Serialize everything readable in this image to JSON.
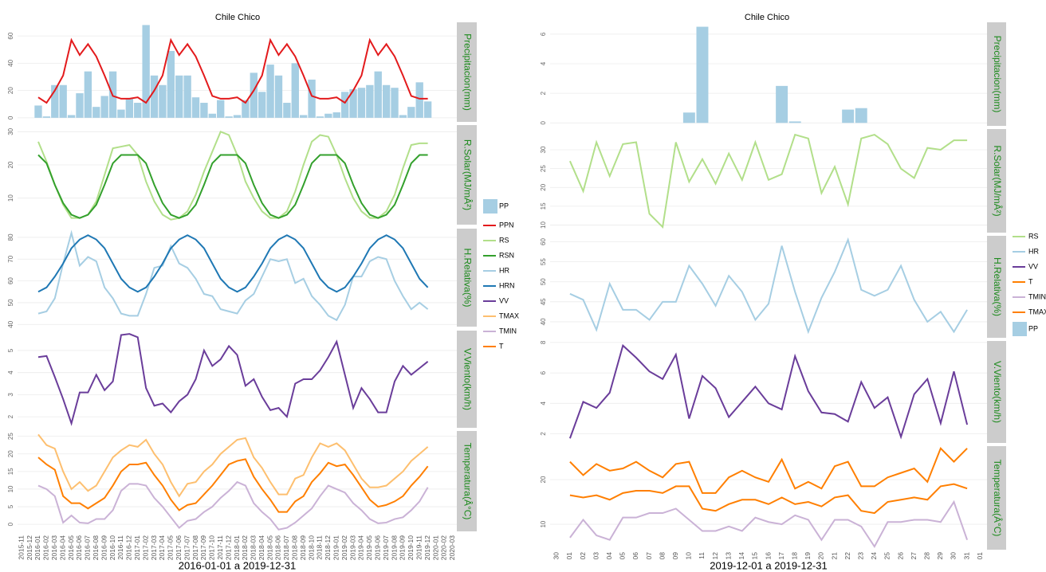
{
  "chart_data": [
    {
      "type": "faceted",
      "title": "Chile Chico",
      "xlabel": "2016-01-01 a 2019-12-31",
      "grid": true,
      "categories": [
        "2015-11",
        "2015-12",
        "2016-01",
        "2016-02",
        "2016-03",
        "2016-04",
        "2016-05",
        "2016-06",
        "2016-07",
        "2016-08",
        "2016-09",
        "2016-10",
        "2016-11",
        "2016-12",
        "2017-01",
        "2017-02",
        "2017-03",
        "2017-04",
        "2017-05",
        "2017-06",
        "2017-07",
        "2017-08",
        "2017-09",
        "2017-10",
        "2017-11",
        "2017-12",
        "2018-01",
        "2018-02",
        "2018-03",
        "2018-04",
        "2018-05",
        "2018-06",
        "2018-07",
        "2018-08",
        "2018-09",
        "2018-10",
        "2018-11",
        "2018-12",
        "2019-01",
        "2019-02",
        "2019-03",
        "2019-04",
        "2019-05",
        "2019-06",
        "2019-07",
        "2019-08",
        "2019-09",
        "2019-10",
        "2019-11",
        "2019-12",
        "2020-01",
        "2020-02",
        "2020-03"
      ],
      "panels": [
        {
          "label": "Precipitacion(mm)",
          "ylim": [
            -3,
            70
          ],
          "yticks": [
            0,
            20,
            40,
            60
          ]
        },
        {
          "label": "R.Solar(MJ/mÂ²)",
          "ylim": [
            2,
            32
          ],
          "yticks": [
            10,
            20,
            30
          ]
        },
        {
          "label": "H.Relativa(%)",
          "ylim": [
            39,
            84
          ],
          "yticks": [
            40,
            50,
            60,
            70,
            80
          ]
        },
        {
          "label": "V.Viento(km/h)",
          "ylim": [
            1.5,
            5.9
          ],
          "yticks": [
            2,
            3,
            4,
            5
          ]
        },
        {
          "label": "Temperatura(Â°C)",
          "ylim": [
            -2,
            26.5
          ],
          "yticks": [
            0,
            5,
            10,
            15,
            20,
            25
          ]
        }
      ],
      "series": [
        {
          "name": "PP",
          "color": "#a6cee3",
          "kind": "bar",
          "panel": 0,
          "values": [
            null,
            null,
            9,
            1,
            24,
            24,
            2,
            18,
            34,
            8,
            16,
            34,
            6,
            14,
            11,
            68,
            31,
            24,
            49,
            31,
            31,
            15,
            11,
            3,
            13,
            1,
            2,
            13,
            33,
            19,
            39,
            31,
            11,
            40,
            2,
            28,
            1,
            3,
            4,
            19,
            21,
            22,
            24,
            34,
            24,
            22,
            2,
            8,
            26,
            12,
            null,
            null,
            null
          ]
        },
        {
          "name": "PPN",
          "color": "#e31a1c",
          "kind": "line",
          "panel": 0,
          "values": [
            null,
            null,
            15,
            11,
            20,
            31,
            57,
            46,
            54,
            45,
            31,
            16,
            14,
            14,
            15,
            11,
            20,
            31,
            57,
            46,
            54,
            45,
            31,
            16,
            14,
            14,
            15,
            11,
            20,
            31,
            57,
            46,
            54,
            45,
            31,
            16,
            14,
            14,
            15,
            11,
            20,
            31,
            57,
            46,
            54,
            45,
            31,
            16,
            14,
            14,
            null,
            null,
            null
          ]
        },
        {
          "name": "RS",
          "color": "#b2df8a",
          "kind": "line",
          "panel": 1,
          "values": [
            null,
            null,
            27,
            21,
            14,
            8,
            4,
            4,
            5,
            9,
            17,
            25,
            25.5,
            26,
            23,
            15,
            9,
            5,
            3.5,
            4,
            6,
            11,
            18,
            24,
            30,
            29,
            23,
            15,
            10,
            6,
            4,
            4,
            6,
            12,
            20,
            27,
            29,
            28.5,
            23,
            16,
            10,
            6,
            4,
            4,
            6,
            11,
            19,
            26,
            26.5,
            26.5,
            null,
            null,
            null
          ]
        },
        {
          "name": "RSN",
          "color": "#33a02c",
          "kind": "line",
          "panel": 1,
          "values": [
            null,
            null,
            23,
            20.5,
            14,
            8.5,
            5,
            4,
            5,
            8,
            14,
            20.5,
            23,
            23,
            23,
            20.5,
            14,
            8.5,
            5,
            4,
            5,
            8,
            14,
            20.5,
            23,
            23,
            23,
            20.5,
            14,
            8.5,
            5,
            4,
            5,
            8,
            14,
            20.5,
            23,
            23,
            23,
            20.5,
            14,
            8.5,
            5,
            4,
            5,
            8,
            14,
            20.5,
            23,
            23,
            null,
            null,
            null
          ]
        },
        {
          "name": "HR",
          "color": "#a6cee3",
          "kind": "line",
          "panel": 2,
          "values": [
            null,
            null,
            45,
            46,
            52,
            68,
            82,
            67,
            71,
            69,
            57,
            52,
            45,
            44,
            44,
            54,
            66,
            67,
            76,
            68,
            66,
            61,
            54,
            53,
            47,
            46,
            45,
            51,
            54,
            62,
            70,
            69,
            70,
            59,
            61,
            53,
            49,
            44,
            42,
            49,
            62,
            62,
            69,
            71,
            70,
            60,
            53,
            47,
            50,
            47,
            null,
            null,
            null
          ]
        },
        {
          "name": "HRN",
          "color": "#1f78b4",
          "kind": "line",
          "panel": 2,
          "values": [
            null,
            null,
            55,
            57,
            62,
            68,
            75,
            79,
            81,
            79,
            75,
            68,
            61,
            57,
            55,
            57,
            62,
            68,
            75,
            79,
            81,
            79,
            75,
            68,
            61,
            57,
            55,
            57,
            62,
            68,
            75,
            79,
            81,
            79,
            75,
            68,
            61,
            57,
            55,
            57,
            62,
            68,
            75,
            79,
            81,
            79,
            75,
            68,
            61,
            57,
            null,
            null,
            null
          ]
        },
        {
          "name": "VV",
          "color": "#6a3d9a",
          "kind": "line",
          "panel": 3,
          "values": [
            null,
            null,
            4.7,
            4.75,
            3.8,
            2.8,
            1.7,
            3.1,
            3.1,
            3.9,
            3.2,
            3.6,
            5.7,
            5.75,
            5.6,
            3.3,
            2.5,
            2.6,
            2.2,
            2.7,
            3.0,
            3.7,
            5.0,
            4.3,
            4.6,
            5.2,
            4.8,
            3.4,
            3.7,
            2.9,
            2.3,
            2.4,
            2.0,
            3.5,
            3.7,
            3.7,
            4.1,
            4.7,
            5.4,
            3.9,
            2.4,
            3.3,
            2.8,
            2.2,
            2.2,
            3.6,
            4.3,
            3.9,
            4.2,
            4.5,
            null,
            null,
            null
          ]
        },
        {
          "name": "TMAX",
          "color": "#fdbf6f",
          "kind": "line",
          "panel": 4,
          "values": [
            null,
            null,
            25.5,
            22.5,
            21.5,
            15,
            10,
            12,
            9.5,
            11,
            15,
            19,
            21,
            22.5,
            22,
            24,
            20,
            17,
            12,
            8,
            11.5,
            12,
            15,
            17,
            20,
            22,
            24,
            24.5,
            19,
            16,
            12,
            8.5,
            8.5,
            13,
            14,
            19,
            23,
            22,
            23,
            21,
            17,
            13,
            10.5,
            10.5,
            11,
            13,
            15,
            18,
            20,
            22,
            null,
            null,
            null
          ]
        },
        {
          "name": "TMIN",
          "color": "#cab2d6",
          "kind": "line",
          "panel": 4,
          "values": [
            null,
            null,
            11,
            10,
            8,
            0.5,
            2.5,
            0.5,
            0.3,
            1.5,
            1.5,
            4,
            9.5,
            11.5,
            11.5,
            11,
            7.5,
            5,
            2,
            -1,
            1,
            1.5,
            3.5,
            5,
            7.5,
            9.5,
            12,
            11,
            6,
            3.5,
            1.5,
            -1.5,
            -1,
            0.5,
            2.5,
            4.5,
            8,
            11,
            10,
            9,
            6,
            4,
            1.5,
            0.3,
            0.5,
            1.5,
            2,
            4,
            6.5,
            10.5,
            null,
            null,
            null
          ]
        },
        {
          "name": "T",
          "color": "#ff7f00",
          "kind": "line",
          "panel": 4,
          "values": [
            null,
            null,
            19,
            17,
            15.5,
            8,
            6,
            6,
            4.5,
            6,
            7.5,
            11,
            15,
            17,
            17,
            17.5,
            14,
            11,
            7,
            4,
            5.5,
            6,
            8.5,
            11,
            14,
            17,
            18,
            18.5,
            13.5,
            10,
            7,
            3.5,
            3.5,
            6.5,
            8,
            12,
            14.5,
            17.5,
            16.5,
            17,
            14,
            10.5,
            7,
            5,
            5.5,
            6.5,
            8,
            11,
            13.5,
            16.5,
            null,
            null,
            null
          ]
        }
      ]
    },
    {
      "type": "faceted",
      "title": "Chile Chico",
      "xlabel": "2019-12-01 a 2019-12-31",
      "grid": true,
      "categories": [
        "30",
        "01",
        "02",
        "03",
        "04",
        "05",
        "06",
        "07",
        "08",
        "09",
        "10",
        "11",
        "12",
        "13",
        "14",
        "15",
        "16",
        "17",
        "18",
        "19",
        "20",
        "21",
        "22",
        "23",
        "24",
        "25",
        "26",
        "27",
        "28",
        "29",
        "30",
        "31",
        "01"
      ],
      "panels": [
        {
          "label": "Precipitacion(mm)",
          "ylim": [
            -0.2,
            6.8
          ],
          "yticks": [
            0,
            2,
            4,
            6
          ]
        },
        {
          "label": "R.Solar(MJ/mÂ²)",
          "ylim": [
            8,
            35.5
          ],
          "yticks": [
            10,
            15,
            20,
            25,
            30
          ]
        },
        {
          "label": "H.Relativa(%)",
          "ylim": [
            36,
            61.5
          ],
          "yticks": [
            40,
            45,
            50,
            55,
            60
          ]
        },
        {
          "label": "V.Viento(km/h)",
          "ylim": [
            1.4,
            8.1
          ],
          "yticks": [
            2,
            4,
            6,
            8
          ]
        },
        {
          "label": "Temperatura(Â°C)",
          "ylim": [
            4.3,
            27.5
          ],
          "yticks": [
            10,
            20
          ]
        }
      ],
      "series": [
        {
          "name": "RS",
          "color": "#b2df8a",
          "kind": "line",
          "panel": 1,
          "values": [
            null,
            27,
            19,
            32,
            23,
            31.5,
            32,
            13,
            9.5,
            32,
            21.5,
            27.5,
            21,
            29,
            22,
            32,
            22,
            23.5,
            34,
            33,
            18.5,
            25.5,
            15.5,
            33,
            34,
            31.5,
            25,
            22.5,
            30.5,
            30,
            32.5,
            32.5,
            null
          ]
        },
        {
          "name": "HR",
          "color": "#a6cee3",
          "kind": "line",
          "panel": 2,
          "values": [
            null,
            47,
            45.5,
            38,
            49.5,
            43,
            43,
            40.5,
            45,
            45,
            54,
            49.5,
            44,
            51.5,
            47.5,
            40.5,
            44.5,
            59,
            47.5,
            37.5,
            46,
            52.5,
            60.5,
            48,
            46.5,
            48,
            54,
            45.5,
            40,
            42.5,
            37.5,
            43,
            null
          ]
        },
        {
          "name": "VV",
          "color": "#6a3d9a",
          "kind": "line",
          "panel": 3,
          "values": [
            null,
            1.7,
            4.1,
            3.7,
            4.7,
            7.8,
            7.0,
            6.1,
            5.6,
            7.2,
            3.0,
            5.8,
            5.0,
            3.1,
            4.1,
            5.1,
            4.0,
            3.6,
            7.1,
            4.8,
            3.4,
            3.3,
            2.8,
            5.4,
            3.7,
            4.4,
            1.8,
            4.6,
            5.6,
            2.7,
            6.1,
            2.6,
            null
          ]
        },
        {
          "name": "T",
          "color": "#ff7f00",
          "kind": "line",
          "panel": 4,
          "values": [
            null,
            16.5,
            16,
            16.5,
            15.5,
            17,
            17.5,
            17.5,
            17,
            18.5,
            18.5,
            13.5,
            13,
            14.5,
            15.5,
            15.5,
            14.5,
            16,
            14.5,
            15,
            14,
            16,
            16.5,
            13,
            12.5,
            15,
            15.5,
            16,
            15.5,
            18.5,
            19,
            18,
            null
          ]
        },
        {
          "name": "TMIN",
          "color": "#cab2d6",
          "kind": "line",
          "panel": 4,
          "values": [
            null,
            7,
            11,
            7.5,
            6.5,
            11.5,
            11.5,
            12.5,
            12.5,
            13.5,
            11,
            8.5,
            8.5,
            9.5,
            8.5,
            11.5,
            10.5,
            10,
            12,
            11,
            6.5,
            11,
            11,
            9.5,
            5,
            10.5,
            10.5,
            11,
            11,
            10.5,
            15,
            6.5,
            null
          ]
        },
        {
          "name": "TMAX",
          "color": "#ff7f00",
          "kind": "line",
          "panel": 4,
          "values": [
            null,
            24,
            21,
            23.5,
            22,
            22.5,
            24,
            22,
            20.5,
            23.5,
            24,
            17,
            17,
            20.5,
            22,
            20.5,
            19.5,
            24.5,
            18,
            19.5,
            18,
            23,
            24,
            18.5,
            18.5,
            20.5,
            21.5,
            22.5,
            19.5,
            27,
            24,
            27,
            null
          ]
        },
        {
          "name": "PP",
          "color": "#a6cee3",
          "kind": "bar",
          "panel": 0,
          "values": [
            null,
            0,
            0,
            0,
            0,
            0,
            0,
            0,
            0,
            0,
            0.7,
            6.5,
            0,
            0,
            0,
            0,
            0,
            2.5,
            0.1,
            0,
            0,
            0,
            0.9,
            1.0,
            0,
            0,
            0,
            0,
            0,
            0,
            0,
            0,
            null
          ]
        }
      ]
    }
  ]
}
